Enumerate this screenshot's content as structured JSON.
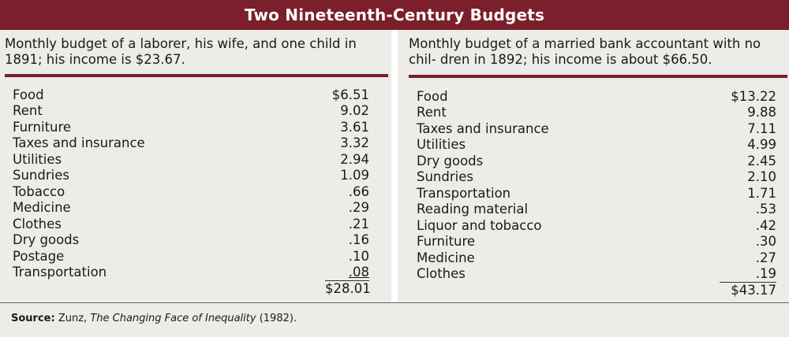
{
  "title": "Two Nineteenth-Century Budgets",
  "left": {
    "description": "Monthly budget of a laborer, his wife, and one child in 1891; his income is $23.67.",
    "items": [
      {
        "label": "Food",
        "amount": "$6.51"
      },
      {
        "label": "Rent",
        "amount": "9.02"
      },
      {
        "label": "Furniture",
        "amount": "3.61"
      },
      {
        "label": "Taxes and insurance",
        "amount": "3.32"
      },
      {
        "label": "Utilities",
        "amount": "2.94"
      },
      {
        "label": "Sundries",
        "amount": "1.09"
      },
      {
        "label": "Tobacco",
        "amount": ".66"
      },
      {
        "label": "Medicine",
        "amount": ".29"
      },
      {
        "label": "Clothes",
        "amount": ".21"
      },
      {
        "label": "Dry goods",
        "amount": ".16"
      },
      {
        "label": "Postage",
        "amount": ".10"
      },
      {
        "label": "Transportation",
        "amount": ".08"
      }
    ],
    "total": "$28.01"
  },
  "right": {
    "description": "Monthly budget of a married bank accountant with no chil- dren in 1892; his income is about $66.50.",
    "items": [
      {
        "label": "Food",
        "amount": "$13.22"
      },
      {
        "label": "Rent",
        "amount": "9.88"
      },
      {
        "label": "Taxes and insurance",
        "amount": "7.11"
      },
      {
        "label": "Utilities",
        "amount": "4.99"
      },
      {
        "label": "Dry goods",
        "amount": "2.45"
      },
      {
        "label": "Sundries",
        "amount": "2.10"
      },
      {
        "label": "Transportation",
        "amount": "1.71"
      },
      {
        "label": "Reading material",
        "amount": ".53"
      },
      {
        "label": "Liquor and tobacco",
        "amount": ".42"
      },
      {
        "label": "Furniture",
        "amount": ".30"
      },
      {
        "label": "Medicine",
        "amount": ".27"
      },
      {
        "label": "Clothes",
        "amount": ".19"
      }
    ],
    "total": "$43.17"
  },
  "source": {
    "label": "Source:",
    "author": "Zunz,",
    "work": "The Changing Face of Inequality",
    "year": "(1982)."
  },
  "colors": {
    "accent": "#7a1f2b",
    "background": "#ecece9"
  }
}
